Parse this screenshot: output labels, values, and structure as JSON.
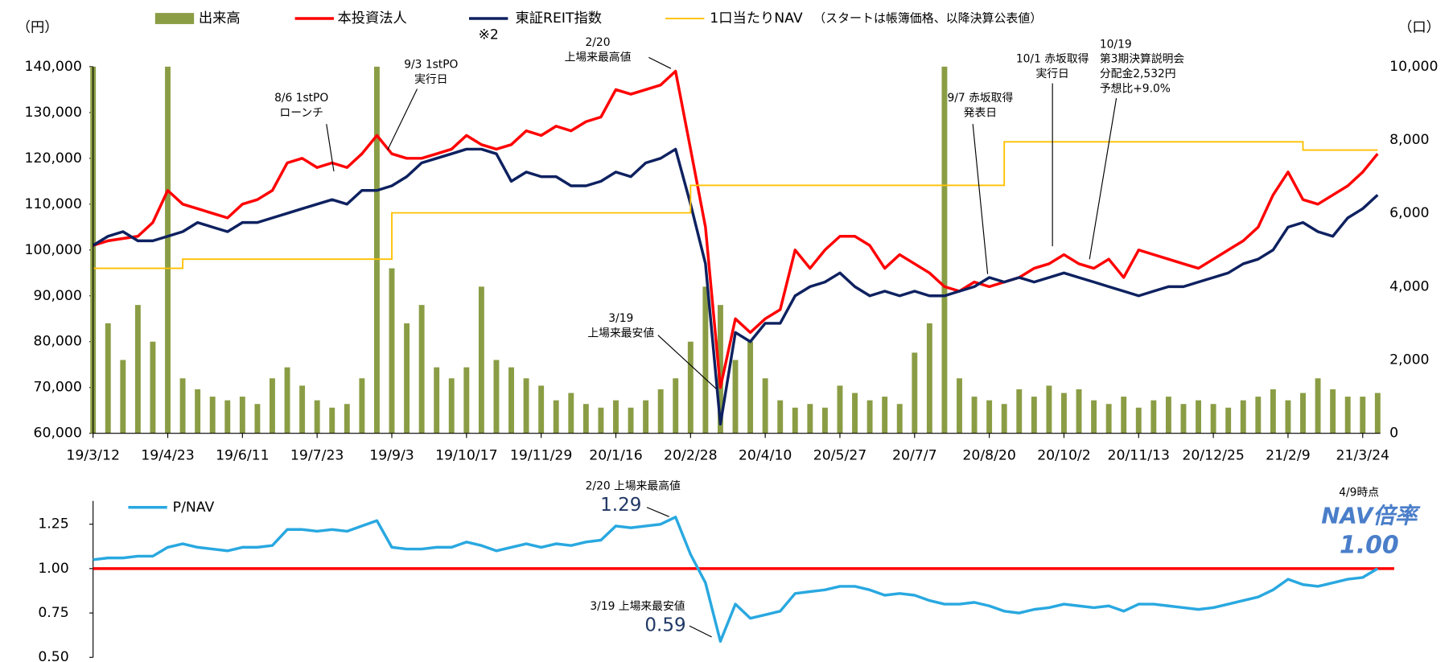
{
  "chart_data": [
    {
      "type": "combo",
      "y_unit_label": "（円）",
      "y2_unit_label": "（口）",
      "categories": [
        "19/3/12",
        null,
        null,
        null,
        null,
        "19/4/23",
        null,
        null,
        null,
        null,
        "19/6/11",
        null,
        null,
        null,
        null,
        "19/7/23",
        null,
        null,
        null,
        null,
        "19/9/3",
        null,
        null,
        null,
        null,
        "19/10/17",
        null,
        null,
        null,
        null,
        "19/11/29",
        null,
        null,
        null,
        null,
        "20/1/16",
        null,
        null,
        null,
        null,
        "20/2/28",
        null,
        null,
        null,
        null,
        "20/4/10",
        null,
        null,
        null,
        null,
        "20/5/27",
        null,
        null,
        null,
        null,
        "20/7/7",
        null,
        null,
        null,
        null,
        "20/8/20",
        null,
        null,
        null,
        null,
        "20/10/2",
        null,
        null,
        null,
        null,
        "20/11/13",
        null,
        null,
        null,
        null,
        "20/12/25",
        null,
        null,
        null,
        null,
        "21/2/9",
        null,
        null,
        null,
        null,
        "21/3/24",
        null
      ],
      "ylim": [
        60000,
        140000
      ],
      "yticks": [
        {
          "value": 60000,
          "label": "60,000"
        },
        {
          "value": 70000,
          "label": "70,000"
        },
        {
          "value": 80000,
          "label": "80,000"
        },
        {
          "value": 90000,
          "label": "90,000"
        },
        {
          "value": 100000,
          "label": "100,000"
        },
        {
          "value": 110000,
          "label": "110,000"
        },
        {
          "value": 120000,
          "label": "120,000"
        },
        {
          "value": 130000,
          "label": "130,000"
        },
        {
          "value": 140000,
          "label": "140,000"
        }
      ],
      "y2lim": [
        0,
        10000
      ],
      "y2ticks": [
        0,
        {
          "value": 2000,
          "label": "2,000"
        },
        {
          "value": 4000,
          "label": "4,000"
        },
        {
          "value": 6000,
          "label": "6,000"
        },
        {
          "value": 8000,
          "label": "8,000"
        },
        {
          "value": 10000,
          "label": "10,000"
        }
      ],
      "series": [
        {
          "name": "出来高",
          "type": "bar",
          "axis": "y2",
          "color": "#8a9d45",
          "values": [
            10000,
            3000,
            2000,
            3500,
            2500,
            10000,
            1500,
            1200,
            1000,
            900,
            1000,
            800,
            1500,
            1800,
            1300,
            900,
            700,
            800,
            1500,
            10000,
            4500,
            3000,
            3500,
            1800,
            1500,
            1800,
            4000,
            2000,
            1800,
            1500,
            1300,
            900,
            1100,
            800,
            700,
            900,
            700,
            900,
            1200,
            1500,
            2500,
            4000,
            3500,
            2000,
            2500,
            1500,
            900,
            700,
            800,
            700,
            1300,
            1100,
            900,
            1000,
            800,
            2200,
            3000,
            10000,
            1500,
            1000,
            900,
            800,
            1200,
            1000,
            1300,
            1100,
            1200,
            900,
            800,
            1000,
            700,
            900,
            1000,
            800,
            900,
            800,
            700,
            900,
            1000,
            1200,
            900,
            1100,
            1500,
            1200,
            1000,
            1000,
            1100
          ]
        },
        {
          "name": "本投資法人",
          "type": "line",
          "color": "#ff0000",
          "values": [
            101000,
            102000,
            102500,
            103000,
            106000,
            113000,
            110000,
            109000,
            108000,
            107000,
            110000,
            111000,
            113000,
            119000,
            120000,
            118000,
            119000,
            118000,
            121000,
            125000,
            121000,
            120000,
            120000,
            121000,
            122000,
            125000,
            123000,
            122000,
            123000,
            126000,
            125000,
            127000,
            126000,
            128000,
            129000,
            135000,
            134000,
            135000,
            136000,
            139000,
            122000,
            105000,
            70000,
            85000,
            82000,
            85000,
            87000,
            100000,
            96000,
            100000,
            103000,
            103000,
            101000,
            96000,
            99000,
            97000,
            95000,
            92000,
            91000,
            93000,
            92000,
            93000,
            94000,
            96000,
            97000,
            99000,
            97000,
            96000,
            98000,
            94000,
            100000,
            99000,
            98000,
            97000,
            96000,
            98000,
            100000,
            102000,
            105000,
            112000,
            117000,
            111000,
            110000,
            112000,
            114000,
            117000,
            121000
          ]
        },
        {
          "name": "東証REIT指数",
          "type": "line",
          "color": "#0e2160",
          "values": [
            101000,
            103000,
            104000,
            102000,
            102000,
            103000,
            104000,
            106000,
            105000,
            104000,
            106000,
            106000,
            107000,
            108000,
            109000,
            110000,
            111000,
            110000,
            113000,
            113000,
            114000,
            116000,
            119000,
            120000,
            121000,
            122000,
            122000,
            121000,
            115000,
            117000,
            116000,
            116000,
            114000,
            114000,
            115000,
            117000,
            116000,
            119000,
            120000,
            122000,
            110000,
            97000,
            62000,
            82000,
            80000,
            84000,
            84000,
            90000,
            92000,
            93000,
            95000,
            92000,
            90000,
            91000,
            90000,
            91000,
            90000,
            90000,
            91000,
            92000,
            94000,
            93000,
            94000,
            93000,
            94000,
            95000,
            94000,
            93000,
            92000,
            91000,
            90000,
            91000,
            92000,
            92000,
            93000,
            94000,
            95000,
            97000,
            98000,
            100000,
            105000,
            106000,
            104000,
            103000,
            107000,
            109000,
            112000
          ]
        },
        {
          "name": "1口当たりNAV",
          "type": "step",
          "color": "#ffc000",
          "values": [
            96000,
            96000,
            96000,
            96000,
            96000,
            96000,
            98000,
            98000,
            98000,
            98000,
            98000,
            98000,
            98000,
            98000,
            98000,
            98000,
            98000,
            98000,
            98000,
            98000,
            108100,
            108100,
            108100,
            108100,
            108100,
            108100,
            108100,
            108100,
            108100,
            108100,
            108100,
            108100,
            108100,
            108100,
            108100,
            108100,
            108100,
            108100,
            108100,
            108100,
            114100,
            114100,
            114100,
            114100,
            114100,
            114100,
            114100,
            114100,
            114100,
            114100,
            114100,
            114100,
            114100,
            114100,
            114100,
            114100,
            114100,
            114100,
            114100,
            114100,
            114100,
            123600,
            123600,
            123600,
            123600,
            123600,
            123600,
            123600,
            123600,
            123600,
            123600,
            123600,
            123600,
            123600,
            123600,
            123600,
            123600,
            123600,
            123600,
            123600,
            123600,
            121800,
            121800,
            121800,
            121800,
            121800,
            121800
          ]
        }
      ],
      "legend_note": "（スタートは帳簿価格、以降決算公表値）",
      "annotations": [
        {
          "lines": [
            "8/6 1stPO",
            "ローンチ"
          ]
        },
        {
          "lines": [
            "9/3 1stPO",
            "実行日"
          ]
        },
        {
          "lines": [
            "2/20",
            "上場来最高値"
          ]
        },
        {
          "lines": [
            "3/19",
            "上場来最安値"
          ]
        },
        {
          "lines": [
            "9/7 赤坂取得",
            "発表日"
          ]
        },
        {
          "lines": [
            "10/1 赤坂取得",
            "実行日"
          ]
        },
        {
          "lines": [
            "10/19",
            "第3期決算説明会",
            "分配金2,532円",
            "予想比+9.0%"
          ]
        },
        {
          "lines": [
            "※2"
          ]
        }
      ]
    },
    {
      "type": "line",
      "ylim": [
        0.5,
        1.35
      ],
      "yticks": [
        {
          "value": 0.5,
          "label": "0.50"
        },
        0.75,
        {
          "value": 1,
          "label": "1.00"
        },
        1.25
      ],
      "reference_line": {
        "value": 1,
        "color": "#ff0000"
      },
      "series": [
        {
          "name": "P/NAV",
          "color": "#29a8e0",
          "values": [
            1.05,
            1.06,
            1.06,
            1.07,
            1.07,
            1.12,
            1.14,
            1.12,
            1.11,
            1.1,
            1.12,
            1.12,
            1.13,
            1.22,
            1.22,
            1.21,
            1.22,
            1.21,
            1.24,
            1.27,
            1.12,
            1.11,
            1.11,
            1.12,
            1.12,
            1.15,
            1.13,
            1.1,
            1.12,
            1.14,
            1.12,
            1.14,
            1.13,
            1.15,
            1.16,
            1.24,
            1.23,
            1.24,
            1.25,
            1.29,
            1.08,
            0.92,
            0.59,
            0.8,
            0.72,
            0.74,
            0.76,
            0.86,
            0.87,
            0.88,
            0.9,
            0.9,
            0.88,
            0.85,
            0.86,
            0.85,
            0.82,
            0.8,
            0.8,
            0.81,
            0.79,
            0.76,
            0.75,
            0.77,
            0.78,
            0.8,
            0.79,
            0.78,
            0.79,
            0.76,
            0.8,
            0.8,
            0.79,
            0.78,
            0.77,
            0.78,
            0.8,
            0.82,
            0.84,
            0.88,
            0.94,
            0.91,
            0.9,
            0.92,
            0.94,
            0.95,
            1.0
          ],
          "value_labels": [
            null,
            null,
            null,
            null,
            null,
            null,
            null,
            null,
            null,
            null,
            null,
            null,
            null,
            null,
            null,
            null,
            null,
            null,
            null,
            null,
            null,
            null,
            null,
            null,
            null,
            null,
            null,
            null,
            null,
            null,
            null,
            null,
            null,
            null,
            null,
            null,
            null,
            null,
            null,
            "1.29",
            null,
            null,
            "0.59",
            null,
            null,
            null,
            null,
            null,
            null,
            null,
            null,
            null,
            null,
            null,
            null,
            null,
            null,
            null,
            null,
            null,
            null,
            null,
            null,
            null,
            null,
            null,
            null,
            null,
            null,
            null,
            null,
            null,
            null,
            null,
            null,
            null,
            null,
            null,
            null,
            null,
            null,
            null,
            null,
            null,
            null,
            null,
            "1.00"
          ]
        }
      ],
      "annotations": [
        {
          "lines": [
            "2/20 上場来最高値"
          ]
        },
        {
          "lines": [
            "3/19 上場来最安値"
          ]
        },
        {
          "lines": [
            "4/9時点"
          ]
        },
        {
          "lines": [
            "NAV倍率"
          ]
        }
      ]
    }
  ]
}
